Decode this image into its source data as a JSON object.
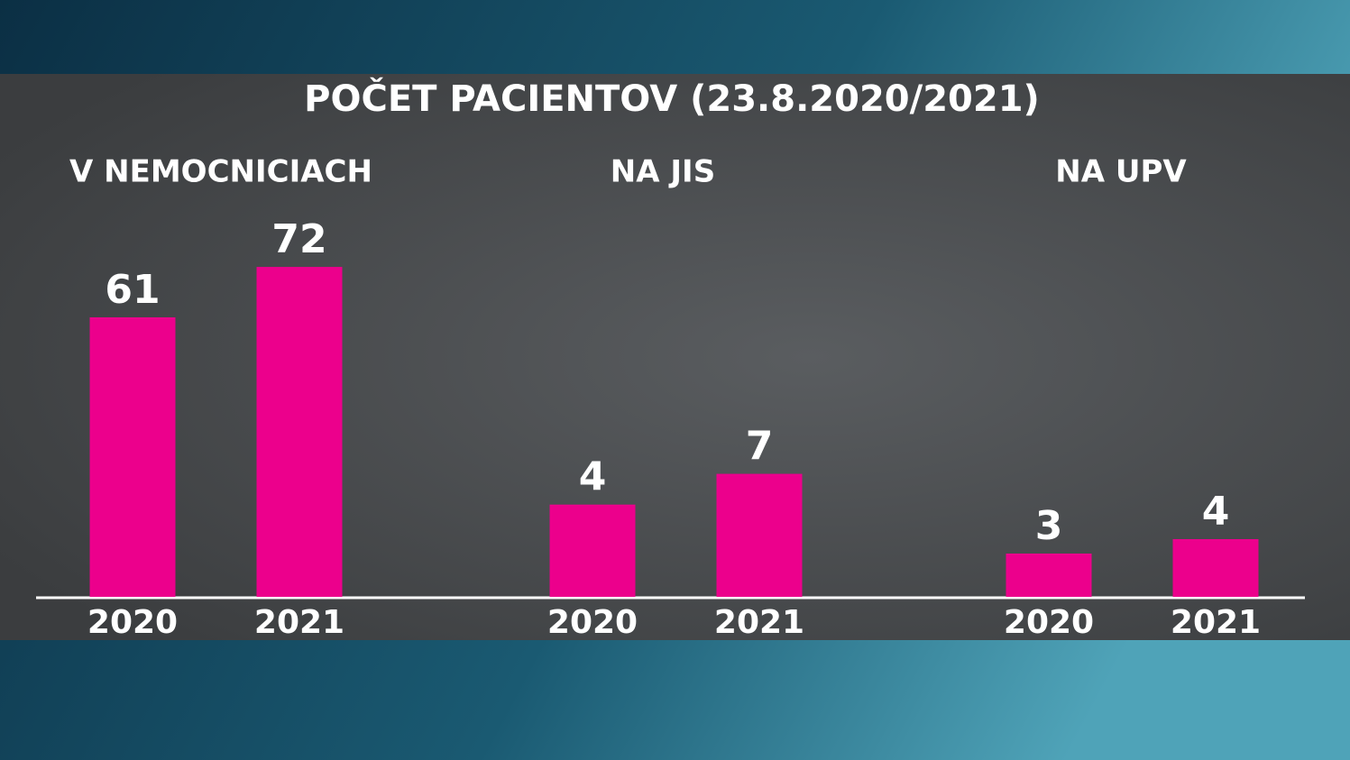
{
  "title": "POČET PACIENTOV  (23.8.2020/2021)",
  "chart_data": [
    {
      "type": "bar",
      "title": "V NEMOCNICIACH",
      "categories": [
        "2020",
        "2021"
      ],
      "values": [
        61,
        72
      ],
      "color": "#ec008c",
      "ylim": [
        0,
        85
      ]
    },
    {
      "type": "bar",
      "title": "NA JIS",
      "categories": [
        "2020",
        "2021"
      ],
      "values": [
        4,
        7
      ],
      "color": "#ec008c",
      "ylim": [
        -5,
        33
      ]
    },
    {
      "type": "bar",
      "title": "NA UPV",
      "categories": [
        "2020",
        "2021"
      ],
      "values": [
        3,
        4
      ],
      "color": "#ec008c",
      "ylim": [
        0,
        27
      ]
    }
  ]
}
